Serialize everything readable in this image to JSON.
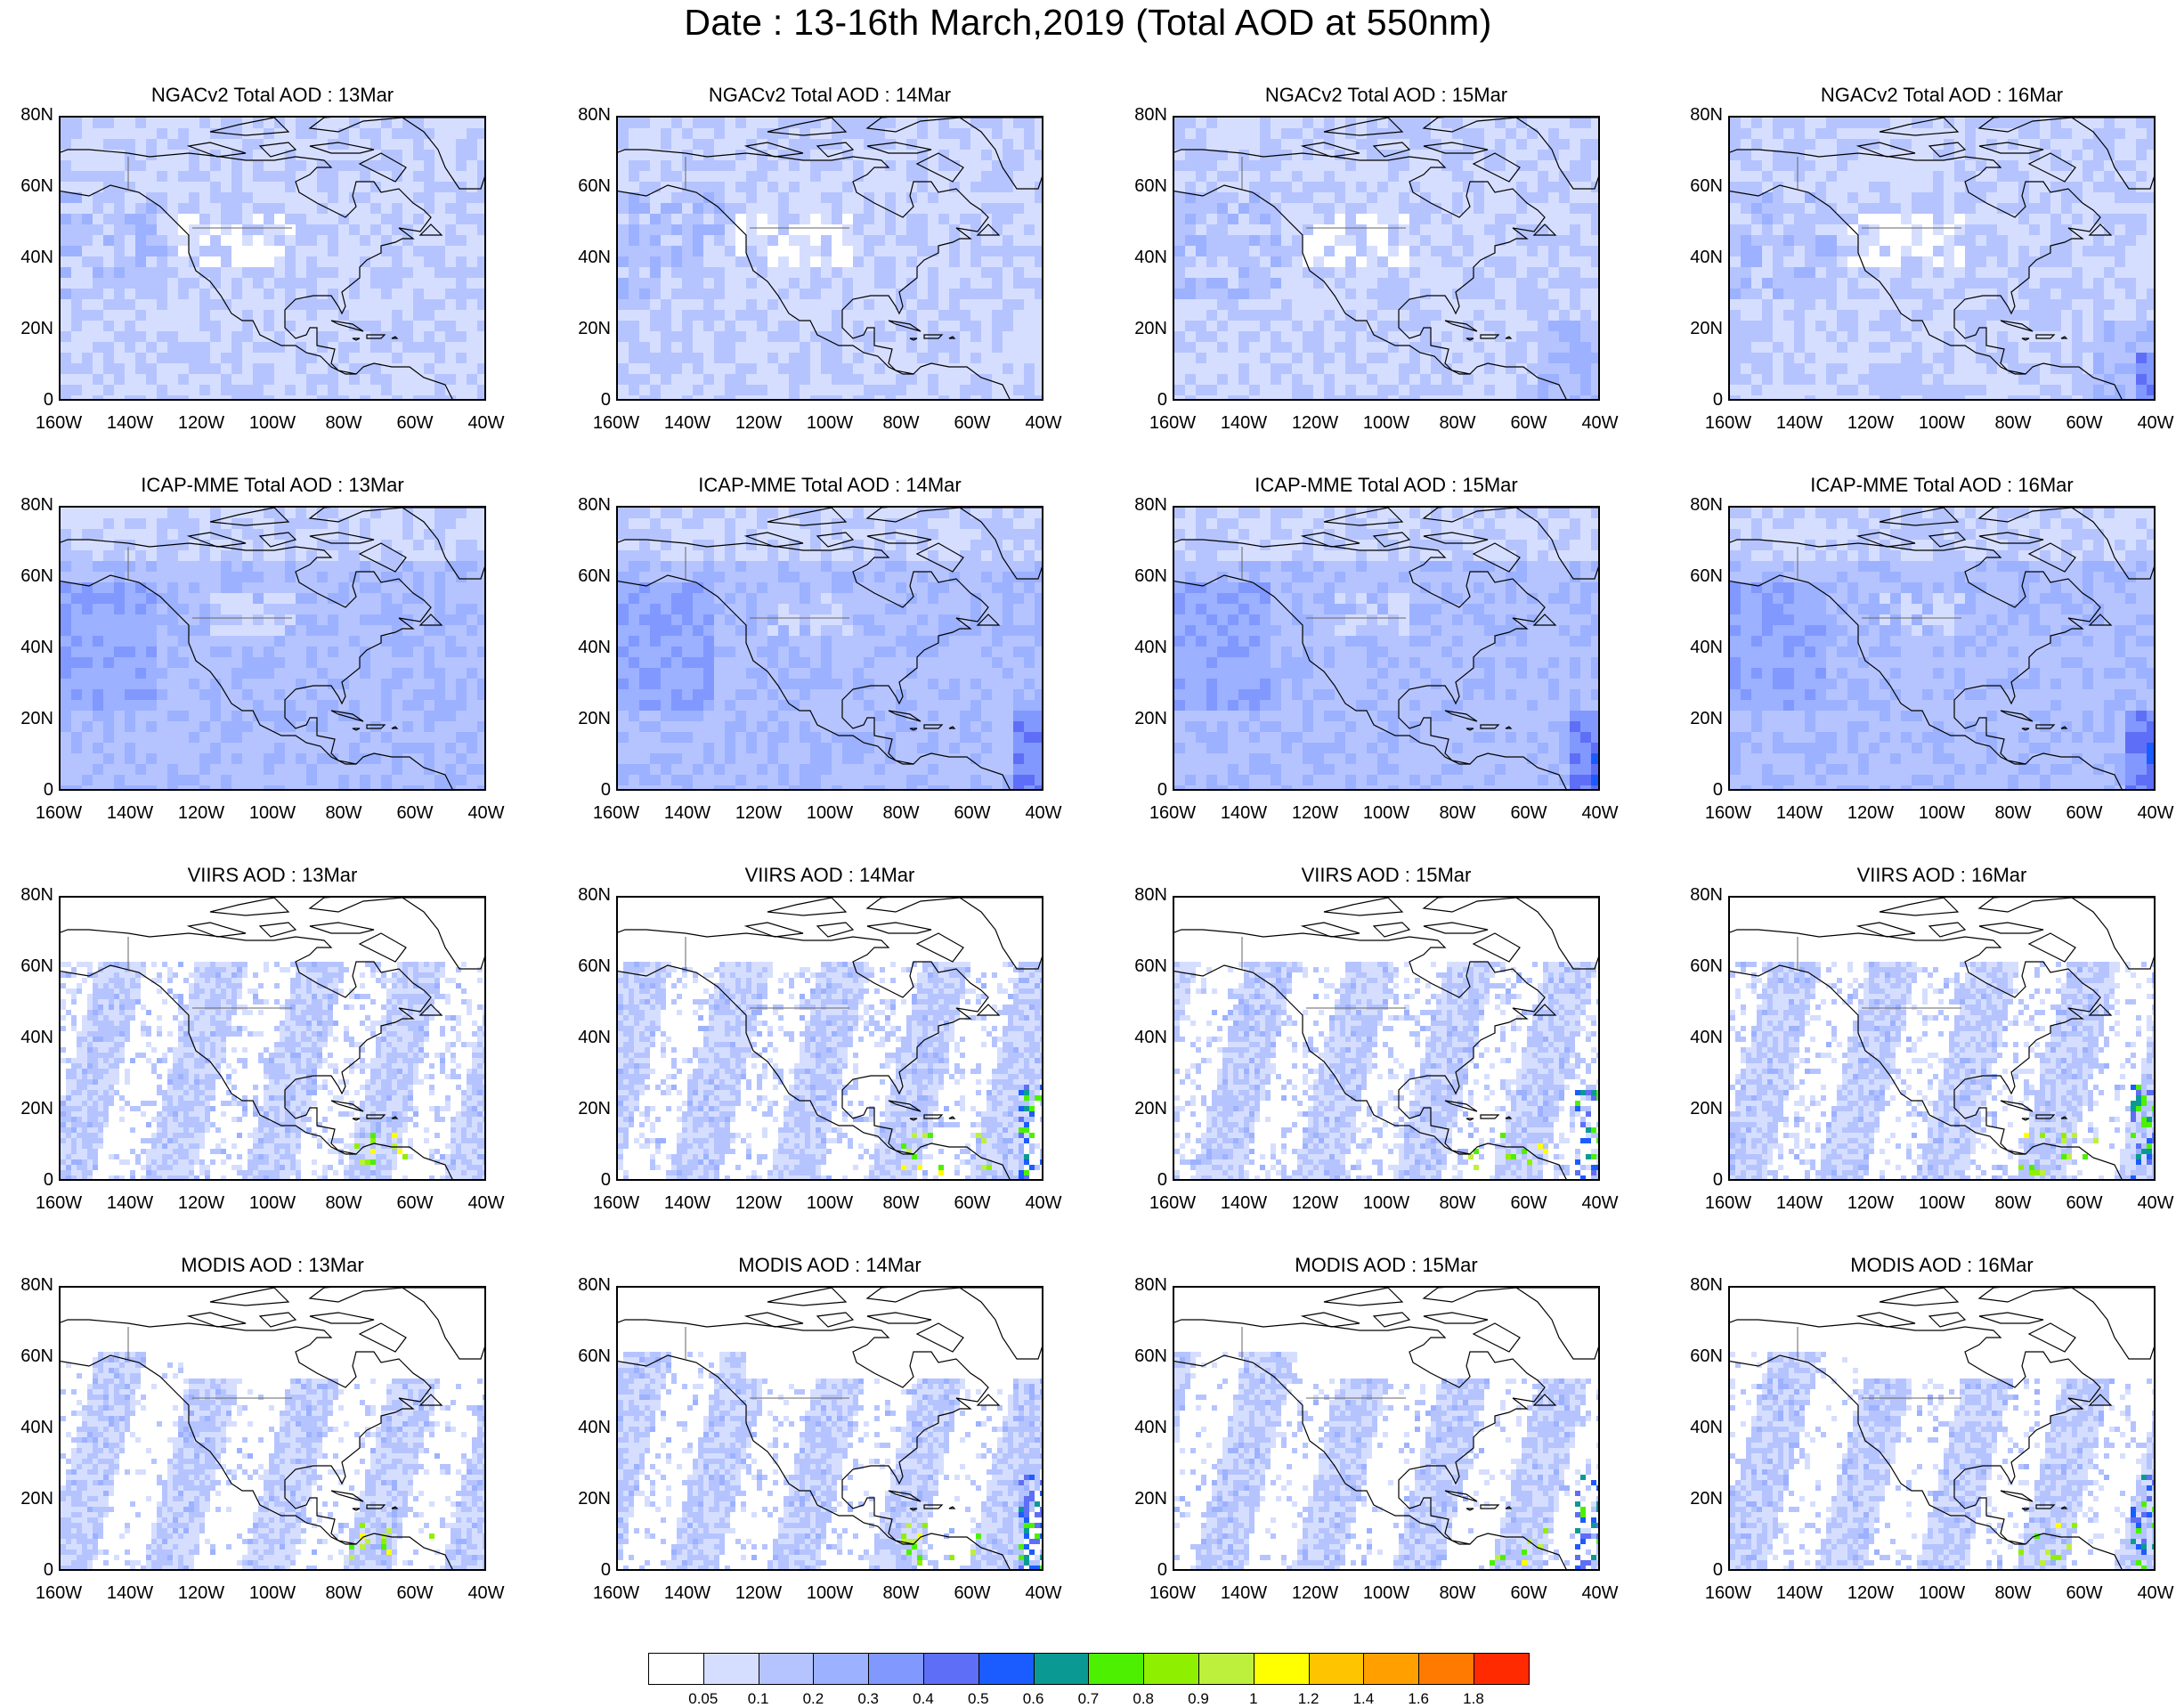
{
  "title": "Date : 13-16th March,2019 (Total AOD at 550nm)",
  "panels": [
    {
      "title": "NGACv2 Total AOD : 13Mar"
    },
    {
      "title": "NGACv2 Total AOD : 14Mar"
    },
    {
      "title": "NGACv2 Total AOD : 15Mar"
    },
    {
      "title": "NGACv2 Total AOD : 16Mar"
    },
    {
      "title": "ICAP-MME Total AOD : 13Mar"
    },
    {
      "title": "ICAP-MME Total AOD : 14Mar"
    },
    {
      "title": "ICAP-MME Total AOD : 15Mar"
    },
    {
      "title": "ICAP-MME Total AOD : 16Mar"
    },
    {
      "title": "VIIRS AOD : 13Mar"
    },
    {
      "title": "VIIRS AOD : 14Mar"
    },
    {
      "title": "VIIRS AOD : 15Mar"
    },
    {
      "title": "VIIRS AOD : 16Mar"
    },
    {
      "title": "MODIS AOD : 13Mar"
    },
    {
      "title": "MODIS AOD : 14Mar"
    },
    {
      "title": "MODIS AOD : 15Mar"
    },
    {
      "title": "MODIS AOD : 16Mar"
    }
  ],
  "lat_labels": [
    "80N",
    "60N",
    "40N",
    "20N",
    "0"
  ],
  "lon_labels": [
    "160W",
    "140W",
    "120W",
    "100W",
    "80W",
    "60W",
    "40W"
  ],
  "colorbar": {
    "labels": [
      "0.05",
      "0.1",
      "0.2",
      "0.3",
      "0.4",
      "0.5",
      "0.6",
      "0.7",
      "0.8",
      "0.9",
      "1",
      "1.2",
      "1.4",
      "1.6",
      "1.8"
    ],
    "colors": [
      "#ffffff",
      "#d6deff",
      "#b5c4ff",
      "#9cb1ff",
      "#8198ff",
      "#5f6ef6",
      "#1a5cff",
      "#0b9a93",
      "#4cf000",
      "#8ef000",
      "#bdf03c",
      "#ffff00",
      "#ffc400",
      "#ffa000",
      "#ff7a00",
      "#ff2a00"
    ]
  }
}
